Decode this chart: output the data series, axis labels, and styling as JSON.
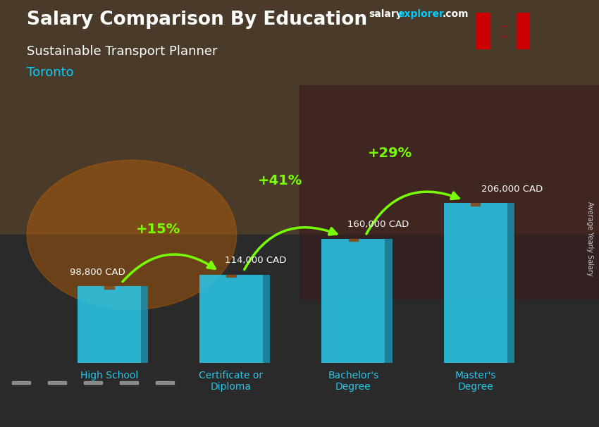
{
  "title_line1": "Salary Comparison By Education",
  "subtitle": "Sustainable Transport Planner",
  "city": "Toronto",
  "watermark_salary": "salary",
  "watermark_explorer": "explorer",
  "watermark_com": ".com",
  "ylabel": "Average Yearly Salary",
  "categories": [
    "High School",
    "Certificate or\nDiploma",
    "Bachelor's\nDegree",
    "Master's\nDegree"
  ],
  "values": [
    98800,
    114000,
    160000,
    206000
  ],
  "value_labels": [
    "98,800 CAD",
    "114,000 CAD",
    "160,000 CAD",
    "206,000 CAD"
  ],
  "pct_labels": [
    "+15%",
    "+41%",
    "+29%"
  ],
  "bar_color_front": "#29c5e6",
  "bar_color_side": "#1a8eaa",
  "bar_color_top": "#50daf0",
  "bg_color_top": "#5a4a3a",
  "bg_color_bottom": "#2a2a2a",
  "title_color": "#ffffff",
  "subtitle_color": "#ffffff",
  "city_color": "#00cfff",
  "pct_color": "#77ff00",
  "value_label_color": "#ffffff",
  "xlabel_color": "#29c5e6",
  "watermark_color1": "#ffffff",
  "watermark_color2": "#00cfff",
  "ylabel_color": "#cccccc",
  "figsize": [
    8.5,
    6.06
  ],
  "dpi": 100
}
